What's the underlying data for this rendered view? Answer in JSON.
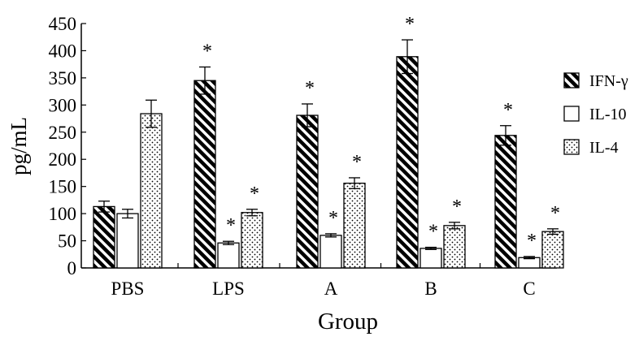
{
  "chart_data": {
    "type": "bar",
    "xlabel": "Group",
    "ylabel": "pg/mL",
    "ylim": [
      0,
      450
    ],
    "yticks": [
      "0",
      "50",
      "100",
      "150",
      "200",
      "250",
      "300",
      "350",
      "400",
      "450"
    ],
    "categories": [
      "PBS",
      "LPS",
      "A",
      "B",
      "C"
    ],
    "legend_position": "right",
    "series": [
      {
        "name": "IFN-γ",
        "pattern": "diagonal-stripes",
        "values": [
          113,
          345,
          281,
          389,
          244
        ],
        "errors": [
          10,
          25,
          21,
          31,
          18
        ],
        "significance": [
          "",
          "*",
          "*",
          "*",
          "*"
        ]
      },
      {
        "name": "IL-10",
        "pattern": "open",
        "values": [
          100,
          46,
          60,
          36,
          19
        ],
        "errors": [
          8,
          3,
          3,
          2,
          2
        ],
        "significance": [
          "",
          "*",
          "*",
          "*",
          "*"
        ]
      },
      {
        "name": "IL-4",
        "pattern": "dots",
        "values": [
          284,
          102,
          156,
          78,
          67
        ],
        "errors": [
          25,
          6,
          10,
          6,
          5
        ],
        "significance": [
          "",
          "*",
          "*",
          "*",
          "*"
        ]
      }
    ]
  }
}
